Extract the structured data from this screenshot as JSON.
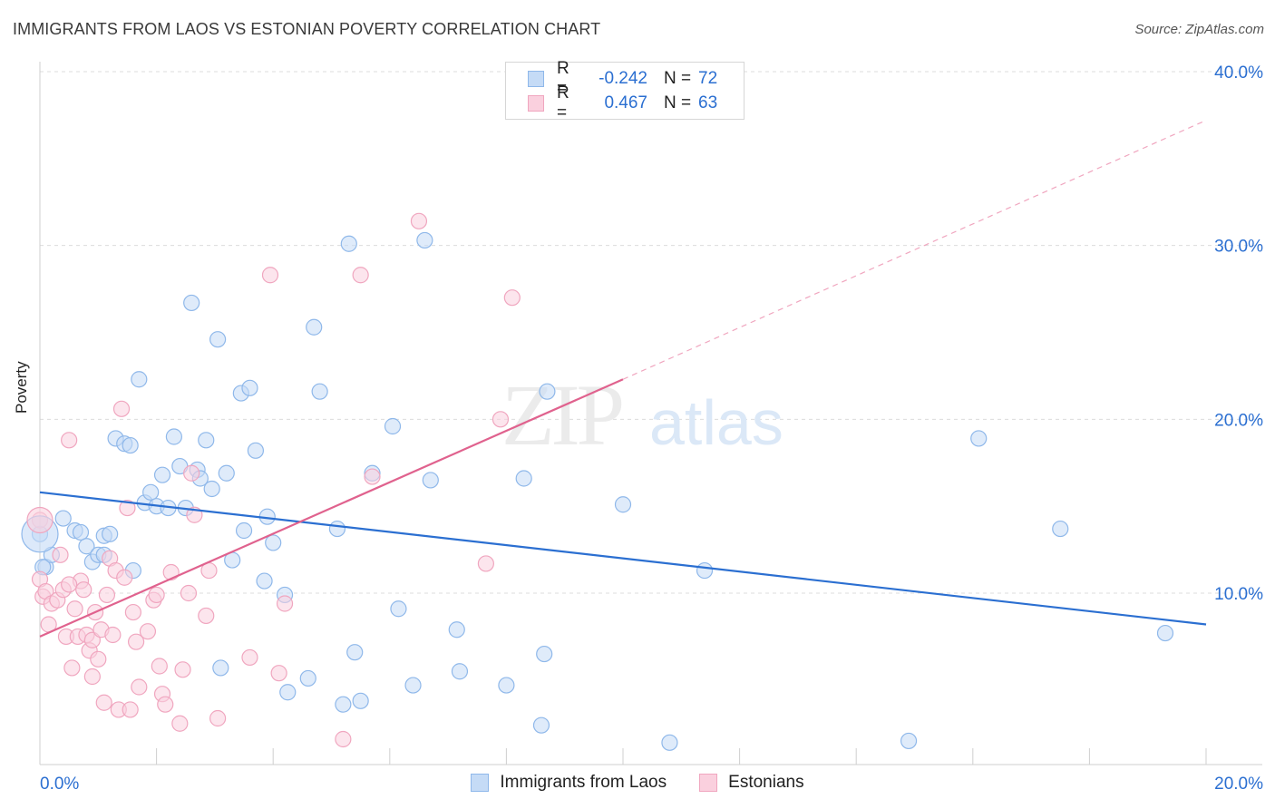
{
  "header": {
    "title": "IMMIGRANTS FROM LAOS VS ESTONIAN POVERTY CORRELATION CHART",
    "source": "Source: ZipAtlas.com"
  },
  "watermark": {
    "zip": "ZIP",
    "atlas": "atlas"
  },
  "legend": {
    "r_label": "R =",
    "n_label": "N =",
    "series": [
      {
        "name": "Immigrants from Laos",
        "r": "-0.242",
        "n": "72",
        "color": "#8fb8ea",
        "fill": "#c5dbf6"
      },
      {
        "name": "Estonians",
        "r": "0.467",
        "n": "63",
        "color": "#f0a6bf",
        "fill": "#fad0de"
      }
    ]
  },
  "chart_data": {
    "type": "scatter",
    "title": "IMMIGRANTS FROM LAOS VS ESTONIAN POVERTY CORRELATION CHART",
    "xlabel": "",
    "ylabel": "Poverty",
    "xlim": [
      0,
      20
    ],
    "ylim": [
      0,
      41
    ],
    "x_ticks": [
      {
        "value": 0,
        "label": "0.0%"
      },
      {
        "value": 20,
        "label": "20.0%"
      }
    ],
    "y_ticks": [
      {
        "value": 10,
        "label": "10.0%"
      },
      {
        "value": 20,
        "label": "20.0%"
      },
      {
        "value": 30,
        "label": "30.0%"
      },
      {
        "value": 40,
        "label": "40.0%"
      }
    ],
    "grid": true,
    "legend_position": "bottom-center",
    "series": [
      {
        "name": "Immigrants from Laos",
        "color": "#8fb8ea",
        "trend_color": "#2b6fd1",
        "trend": {
          "x0": 0,
          "y0": 15.8,
          "x1": 20,
          "y1": 8.2
        },
        "points": [
          [
            0.0,
            13.4
          ],
          [
            0.1,
            11.5
          ],
          [
            0.2,
            12.2
          ],
          [
            0.4,
            14.3
          ],
          [
            0.6,
            13.6
          ],
          [
            0.7,
            13.5
          ],
          [
            0.8,
            12.7
          ],
          [
            0.9,
            11.8
          ],
          [
            1.0,
            12.2
          ],
          [
            1.1,
            12.2
          ],
          [
            1.1,
            13.3
          ],
          [
            1.2,
            13.4
          ],
          [
            1.3,
            18.9
          ],
          [
            1.45,
            18.6
          ],
          [
            1.55,
            18.5
          ],
          [
            1.6,
            11.3
          ],
          [
            1.7,
            22.3
          ],
          [
            1.8,
            15.2
          ],
          [
            1.9,
            15.8
          ],
          [
            2.0,
            15.0
          ],
          [
            2.1,
            16.8
          ],
          [
            2.2,
            14.9
          ],
          [
            2.3,
            19.0
          ],
          [
            2.4,
            17.3
          ],
          [
            2.5,
            14.9
          ],
          [
            2.6,
            26.7
          ],
          [
            2.7,
            17.1
          ],
          [
            2.75,
            16.6
          ],
          [
            2.85,
            18.8
          ],
          [
            2.95,
            16.0
          ],
          [
            3.05,
            24.6
          ],
          [
            3.1,
            5.7
          ],
          [
            3.2,
            16.9
          ],
          [
            3.3,
            11.9
          ],
          [
            3.45,
            21.5
          ],
          [
            3.5,
            13.6
          ],
          [
            3.6,
            21.8
          ],
          [
            3.7,
            18.2
          ],
          [
            3.85,
            10.7
          ],
          [
            3.9,
            14.4
          ],
          [
            4.0,
            12.9
          ],
          [
            4.2,
            9.9
          ],
          [
            4.25,
            4.3
          ],
          [
            4.6,
            5.1
          ],
          [
            4.7,
            25.3
          ],
          [
            4.8,
            21.6
          ],
          [
            5.1,
            13.7
          ],
          [
            5.2,
            3.6
          ],
          [
            5.3,
            30.1
          ],
          [
            5.4,
            6.6
          ],
          [
            5.5,
            3.8
          ],
          [
            5.7,
            16.9
          ],
          [
            6.05,
            19.6
          ],
          [
            6.15,
            9.1
          ],
          [
            6.4,
            4.7
          ],
          [
            6.6,
            30.3
          ],
          [
            6.7,
            16.5
          ],
          [
            7.15,
            7.9
          ],
          [
            7.2,
            5.5
          ],
          [
            8.0,
            4.7
          ],
          [
            8.3,
            16.6
          ],
          [
            8.6,
            2.4
          ],
          [
            8.65,
            6.5
          ],
          [
            8.7,
            21.6
          ],
          [
            10.0,
            15.1
          ],
          [
            10.8,
            1.4
          ],
          [
            11.4,
            11.3
          ],
          [
            14.9,
            1.5
          ],
          [
            16.1,
            18.9
          ],
          [
            17.5,
            13.7
          ],
          [
            19.3,
            7.7
          ],
          [
            0.05,
            11.5
          ]
        ]
      },
      {
        "name": "Estonians",
        "color": "#f0a6bf",
        "trend_color": "#e0628e",
        "trend": {
          "x0": 0,
          "y0": 7.5,
          "x1": 10,
          "y1": 22.3
        },
        "trend_extension": {
          "x0": 10,
          "y0": 22.3,
          "x1": 20,
          "y1": 37.2
        },
        "points": [
          [
            0.0,
            14.2
          ],
          [
            0.0,
            10.8
          ],
          [
            0.05,
            9.8
          ],
          [
            0.1,
            10.1
          ],
          [
            0.15,
            8.2
          ],
          [
            0.2,
            9.4
          ],
          [
            0.3,
            9.6
          ],
          [
            0.35,
            12.2
          ],
          [
            0.4,
            10.2
          ],
          [
            0.45,
            7.5
          ],
          [
            0.5,
            18.8
          ],
          [
            0.55,
            5.7
          ],
          [
            0.6,
            9.1
          ],
          [
            0.65,
            7.5
          ],
          [
            0.7,
            10.7
          ],
          [
            0.75,
            10.2
          ],
          [
            0.8,
            7.6
          ],
          [
            0.85,
            6.7
          ],
          [
            0.9,
            5.2
          ],
          [
            0.9,
            7.3
          ],
          [
            0.95,
            8.9
          ],
          [
            1.0,
            6.2
          ],
          [
            1.05,
            7.9
          ],
          [
            1.1,
            3.7
          ],
          [
            1.15,
            9.9
          ],
          [
            1.2,
            12.0
          ],
          [
            1.25,
            7.6
          ],
          [
            1.3,
            11.3
          ],
          [
            1.35,
            3.3
          ],
          [
            1.4,
            20.6
          ],
          [
            1.45,
            10.9
          ],
          [
            1.5,
            14.9
          ],
          [
            1.55,
            3.3
          ],
          [
            1.6,
            8.9
          ],
          [
            1.65,
            7.2
          ],
          [
            1.7,
            4.6
          ],
          [
            1.85,
            7.8
          ],
          [
            1.95,
            9.6
          ],
          [
            2.0,
            9.9
          ],
          [
            2.05,
            5.8
          ],
          [
            2.1,
            4.2
          ],
          [
            2.15,
            3.6
          ],
          [
            2.25,
            11.2
          ],
          [
            2.4,
            2.5
          ],
          [
            2.45,
            5.6
          ],
          [
            2.55,
            10.0
          ],
          [
            2.6,
            16.9
          ],
          [
            2.65,
            14.5
          ],
          [
            2.85,
            8.7
          ],
          [
            2.9,
            11.3
          ],
          [
            3.05,
            2.8
          ],
          [
            3.6,
            6.3
          ],
          [
            3.95,
            28.3
          ],
          [
            4.1,
            5.4
          ],
          [
            4.2,
            9.4
          ],
          [
            5.2,
            1.6
          ],
          [
            5.5,
            28.3
          ],
          [
            5.7,
            16.7
          ],
          [
            6.5,
            31.4
          ],
          [
            7.65,
            11.7
          ],
          [
            7.9,
            20.0
          ],
          [
            8.1,
            27.0
          ],
          [
            0.5,
            10.5
          ]
        ]
      }
    ]
  }
}
